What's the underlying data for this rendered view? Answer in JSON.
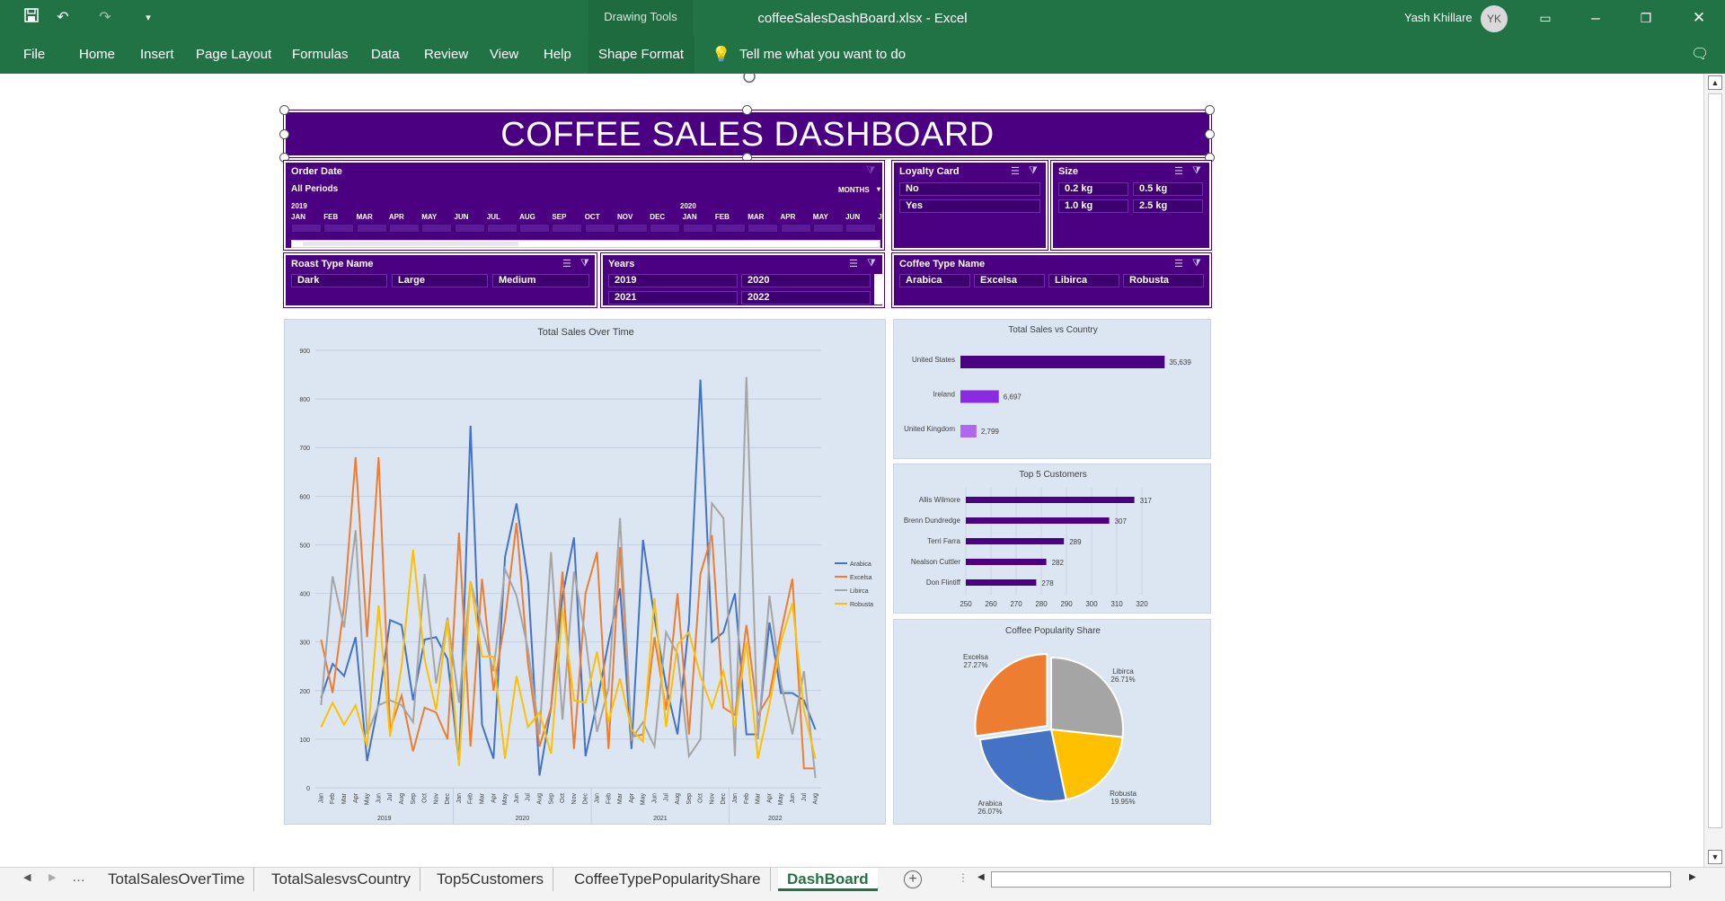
{
  "window": {
    "title": "coffeeSalesDashBoard.xlsx  -  Excel",
    "context_tab": "Drawing Tools",
    "user_name": "Yash Khillare",
    "user_initials": "YK"
  },
  "menu": [
    "File",
    "Home",
    "Insert",
    "Page Layout",
    "Formulas",
    "Data",
    "Review",
    "View",
    "Help",
    "Shape Format"
  ],
  "tell_me": "Tell me what you want to do",
  "dashboard": {
    "title": "COFFEE SALES DASHBOARD",
    "order_date": {
      "header": "Order Date",
      "period": "All Periods",
      "level": "MONTHS",
      "year_2019": "2019",
      "year_2020": "2020",
      "months": [
        "JAN",
        "FEB",
        "MAR",
        "APR",
        "MAY",
        "JUN",
        "JUL",
        "AUG",
        "SEP",
        "OCT",
        "NOV",
        "DEC",
        "JAN",
        "FEB",
        "MAR",
        "APR",
        "MAY",
        "JUN",
        "J"
      ]
    },
    "loyalty": {
      "header": "Loyalty Card",
      "items": [
        "No",
        "Yes"
      ]
    },
    "size": {
      "header": "Size",
      "items": [
        "0.2 kg",
        "0.5 kg",
        "1.0 kg",
        "2.5 kg"
      ]
    },
    "roast": {
      "header": "Roast Type Name",
      "items": [
        "Dark",
        "Large",
        "Medium"
      ]
    },
    "years": {
      "header": "Years",
      "items": [
        "2019",
        "2020",
        "2021",
        "2022"
      ]
    },
    "coffee_type": {
      "header": "Coffee Type Name",
      "items": [
        "Arabica",
        "Excelsa",
        "Libirca",
        "Robusta"
      ]
    }
  },
  "sheet_tabs": [
    "TotalSalesOverTime",
    "TotalSalesvsCountry",
    "Top5Customers",
    "CoffeeTypePopularityShare",
    "DashBoard"
  ],
  "colors": {
    "ribbon": "#217346",
    "dashboard": "#4b0082",
    "panel": "#dce6f2",
    "arabica": "#4472c4",
    "excelsa": "#ed7d31",
    "libirca": "#a5a5a5",
    "robusta": "#ffc000"
  },
  "chart_data": [
    {
      "type": "line",
      "title": "Total Sales Over Time",
      "ylim": [
        0,
        900
      ],
      "yticks": [
        "0",
        "100",
        "200",
        "300",
        "400",
        "500",
        "600",
        "700",
        "800",
        "900"
      ],
      "month_labels": [
        "Jan",
        "Feb",
        "Mar",
        "Apr",
        "May",
        "Jun",
        "Jul",
        "Aug",
        "Sep",
        "Oct",
        "Nov",
        "Dec",
        "Jan",
        "Feb",
        "Mar",
        "Apr",
        "May",
        "Jun",
        "Jul",
        "Aug",
        "Sep",
        "Oct",
        "Nov",
        "Dec",
        "Jan",
        "Feb",
        "Mar",
        "Apr",
        "May",
        "Jun",
        "Jul",
        "Aug",
        "Sep",
        "Oct",
        "Nov",
        "Dec",
        "Jan",
        "Feb",
        "Mar",
        "Apr",
        "May",
        "Jun",
        "Jul",
        "Aug"
      ],
      "year_labels": [
        "2019",
        "2020",
        "2021",
        "2022"
      ],
      "legend": "right",
      "grid": true,
      "series": [
        {
          "name": "Arabica",
          "values": [
            185,
            255,
            230,
            310,
            55,
            175,
            345,
            335,
            180,
            305,
            310,
            265,
            50,
            745,
            130,
            60,
            475,
            585,
            425,
            25,
            165,
            395,
            515,
            65,
            175,
            300,
            410,
            80,
            510,
            350,
            210,
            110,
            340,
            840,
            300,
            320,
            400,
            110,
            110,
            340,
            195,
            195,
            180,
            120
          ]
        },
        {
          "name": "Excelsa",
          "values": [
            305,
            195,
            375,
            680,
            310,
            680,
            120,
            190,
            75,
            165,
            155,
            100,
            525,
            85,
            430,
            200,
            345,
            545,
            255,
            85,
            165,
            445,
            80,
            400,
            485,
            80,
            495,
            105,
            110,
            310,
            160,
            400,
            110,
            440,
            520,
            165,
            150,
            335,
            150,
            190,
            320,
            430,
            40,
            40
          ]
        },
        {
          "name": "Libirca",
          "values": [
            170,
            435,
            330,
            530,
            110,
            170,
            180,
            170,
            135,
            440,
            215,
            350,
            175,
            425,
            330,
            240,
            450,
            395,
            285,
            110,
            485,
            140,
            445,
            310,
            115,
            205,
            555,
            100,
            135,
            85,
            320,
            275,
            65,
            100,
            585,
            555,
            65,
            845,
            100,
            395,
            215,
            110,
            240,
            20
          ]
        },
        {
          "name": "Robusta",
          "values": [
            125,
            175,
            130,
            170,
            85,
            375,
            105,
            250,
            490,
            265,
            160,
            345,
            45,
            425,
            270,
            270,
            60,
            230,
            125,
            155,
            70,
            370,
            180,
            175,
            280,
            135,
            225,
            120,
            95,
            390,
            125,
            295,
            320,
            230,
            165,
            240,
            125,
            300,
            60,
            170,
            300,
            380,
            160,
            60
          ]
        }
      ]
    },
    {
      "type": "bar",
      "title": "Total Sales vs Country",
      "categories": [
        "United States",
        "Ireland",
        "United Kingdom"
      ],
      "values": [
        35639,
        6697,
        2799
      ],
      "data_labels": [
        "35,639",
        "6,697",
        "2,799"
      ],
      "colors": [
        "#4b0082",
        "#8a2be2",
        "#b066ee"
      ]
    },
    {
      "type": "bar",
      "title": "Top 5 Customers",
      "categories": [
        "Allis Wilmore",
        "Brenn Dundredge",
        "Terri Farra",
        "Nealson Cuttler",
        "Don Flintiff"
      ],
      "values": [
        317,
        307,
        289,
        282,
        278
      ],
      "xlim": [
        250,
        320
      ],
      "xticks": [
        "250",
        "260",
        "270",
        "280",
        "290",
        "300",
        "310",
        "320"
      ]
    },
    {
      "type": "pie",
      "title": "Coffee Popularity Share",
      "slices": [
        {
          "name": "Excelsa",
          "value": 27.27,
          "label": "27.27%",
          "color": "#ed7d31"
        },
        {
          "name": "Libirca",
          "value": 26.71,
          "label": "26.71%",
          "color": "#a5a5a5"
        },
        {
          "name": "Robusta",
          "value": 19.95,
          "label": "19.95%",
          "color": "#ffc000"
        },
        {
          "name": "Arabica",
          "value": 26.07,
          "label": "26.07%",
          "color": "#4472c4"
        }
      ]
    }
  ]
}
